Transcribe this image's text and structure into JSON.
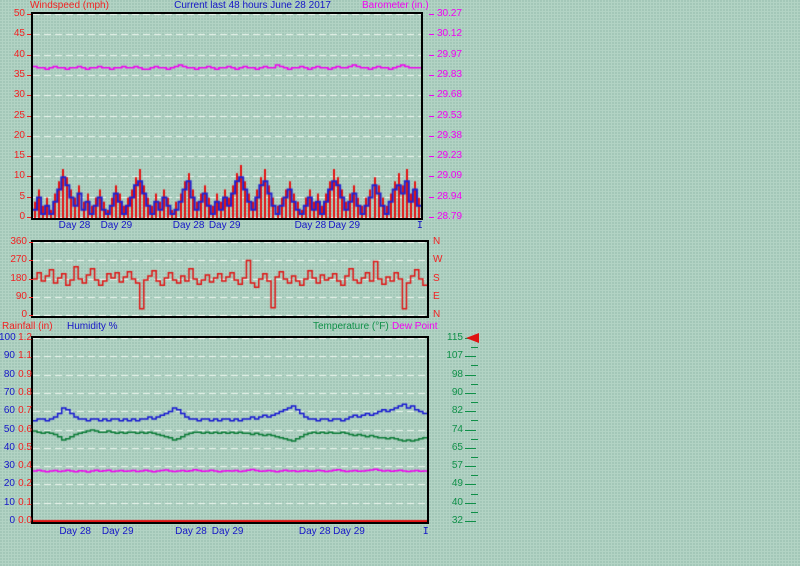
{
  "colors": {
    "red": "#f22222",
    "blue": "#1616c8",
    "magenta": "#f202f2",
    "green": "#0f9048",
    "grid": "#edf6ef",
    "border": "#000000",
    "background": "#b2d3c4",
    "background_dot": "#96bfae"
  },
  "chart_data": [
    {
      "name": "windspeed-barometer-chart",
      "type": "bar",
      "title": "Current last 48 hours June 28 2017",
      "left_axis": {
        "label": "Windspeed (mph)",
        "color": "#f22222",
        "ticks": [
          "50",
          "45",
          "40",
          "35",
          "30",
          "25",
          "20",
          "15",
          "10",
          "5",
          "0"
        ],
        "min": 0,
        "max": 50
      },
      "right_axis": {
        "label": "Barometer (in.)",
        "color": "#f202f2",
        "ticks": [
          "30.27",
          "30.12",
          "29.97",
          "29.83",
          "29.68",
          "29.53",
          "29.38",
          "29.23",
          "29.09",
          "28.94",
          "28.79"
        ],
        "min": 28.79,
        "max": 30.27
      },
      "x_axis": {
        "labels": [
          {
            "text": "Day 28",
            "pos": 0.107
          },
          {
            "text": "Day 29",
            "pos": 0.215
          },
          {
            "text": "Day 28",
            "pos": 0.401
          },
          {
            "text": "Day 29",
            "pos": 0.494
          },
          {
            "text": "Day 28",
            "pos": 0.715
          },
          {
            "text": "Day 29",
            "pos": 0.802
          },
          {
            "text": "I",
            "pos": 0.997
          }
        ]
      },
      "series": [
        {
          "name": "windspeed-high",
          "type": "bars",
          "axis": "left",
          "color": "#e41212",
          "values": [
            4,
            7,
            3,
            5,
            2,
            6,
            9,
            12,
            10,
            7,
            5,
            8,
            4,
            6,
            3,
            5,
            7,
            4,
            2,
            5,
            8,
            6,
            3,
            5,
            7,
            10,
            12,
            8,
            5,
            3,
            6,
            4,
            7,
            5,
            2,
            4,
            6,
            9,
            11,
            7,
            4,
            6,
            8,
            5,
            3,
            6,
            4,
            7,
            5,
            8,
            11,
            13,
            9,
            6,
            4,
            7,
            10,
            12,
            8,
            5,
            3,
            5,
            7,
            9,
            6,
            4,
            2,
            5,
            7,
            4,
            6,
            3,
            6,
            9,
            12,
            10,
            7,
            4,
            6,
            8,
            5,
            3,
            5,
            7,
            10,
            8,
            5,
            3,
            6,
            9,
            11,
            8,
            12,
            6,
            9,
            5
          ]
        },
        {
          "name": "windspeed-average",
          "type": "step",
          "axis": "left",
          "color": "#2222cc",
          "values": [
            2,
            5,
            1,
            3,
            1,
            4,
            7,
            10,
            8,
            5,
            3,
            6,
            2,
            4,
            1,
            3,
            5,
            2,
            1,
            3,
            6,
            4,
            1,
            3,
            5,
            8,
            9,
            6,
            3,
            1,
            4,
            2,
            5,
            3,
            1,
            2,
            4,
            7,
            9,
            5,
            2,
            4,
            6,
            3,
            1,
            4,
            2,
            5,
            3,
            6,
            9,
            10,
            7,
            4,
            2,
            5,
            8,
            9,
            6,
            3,
            1,
            3,
            5,
            7,
            4,
            2,
            1,
            3,
            5,
            2,
            4,
            1,
            4,
            7,
            9,
            8,
            5,
            2,
            4,
            6,
            3,
            1,
            3,
            5,
            8,
            6,
            3,
            1,
            4,
            7,
            8,
            6,
            9,
            4,
            7,
            3
          ]
        },
        {
          "name": "barometer",
          "type": "step",
          "axis": "right",
          "color": "#ee00ee",
          "values": [
            29.89,
            29.88,
            29.88,
            29.87,
            29.88,
            29.89,
            29.88,
            29.88,
            29.87,
            29.88,
            29.88,
            29.89,
            29.88,
            29.87,
            29.88,
            29.88,
            29.89,
            29.88,
            29.88,
            29.87,
            29.88,
            29.88,
            29.89,
            29.88,
            29.88,
            29.89,
            29.88,
            29.87,
            29.87,
            29.88,
            29.89,
            29.88,
            29.88,
            29.87,
            29.88,
            29.89,
            29.9,
            29.89,
            29.88,
            29.88,
            29.87,
            29.88,
            29.88,
            29.89,
            29.88,
            29.87,
            29.88,
            29.88,
            29.89,
            29.88,
            29.87,
            29.88,
            29.89,
            29.88,
            29.88,
            29.87,
            29.88,
            29.89,
            29.88,
            29.88,
            29.9,
            29.89,
            29.88,
            29.87,
            29.88,
            29.88,
            29.89,
            29.88,
            29.87,
            29.88,
            29.89,
            29.88,
            29.88,
            29.87,
            29.88,
            29.89,
            29.88,
            29.88,
            29.89,
            29.9,
            29.89,
            29.88,
            29.88,
            29.87,
            29.88,
            29.89,
            29.88,
            29.88,
            29.87,
            29.88,
            29.89,
            29.9,
            29.89,
            29.88,
            29.88,
            29.88
          ]
        }
      ]
    },
    {
      "name": "wind-direction-chart",
      "type": "line",
      "left_axis": {
        "color": "#f22222",
        "ticks": [
          "360",
          "270",
          "180",
          "90",
          "0"
        ],
        "min": 0,
        "max": 360
      },
      "right_axis": {
        "color": "#f22222",
        "ticks": [
          "N",
          "W",
          "S",
          "E",
          "N"
        ]
      },
      "series": [
        {
          "name": "wind-direction",
          "type": "step",
          "axis": "left",
          "color": "#e01212",
          "values": [
            180,
            210,
            170,
            195,
            225,
            160,
            185,
            205,
            150,
            175,
            240,
            180,
            160,
            200,
            230,
            175,
            150,
            170,
            205,
            185,
            210,
            165,
            190,
            215,
            180,
            160,
            35,
            175,
            195,
            220,
            170,
            150,
            185,
            210,
            175,
            160,
            195,
            170,
            230,
            180,
            155,
            175,
            200,
            165,
            185,
            205,
            170,
            190,
            210,
            175,
            155,
            185,
            270,
            160,
            140,
            180,
            205,
            170,
            40,
            190,
            215,
            180,
            160,
            195,
            170,
            150,
            180,
            220,
            185,
            160,
            200,
            175,
            185,
            205,
            170,
            150,
            195,
            230,
            175,
            160,
            185,
            210,
            170,
            265,
            180,
            155,
            190,
            170,
            210,
            180,
            35,
            160,
            195,
            225,
            180,
            150
          ]
        }
      ]
    },
    {
      "name": "humidity-temperature-chart",
      "type": "line",
      "rain_axis": {
        "label": "Rainfall (in)",
        "color": "#f22222",
        "ticks": [
          "1.2",
          "1.1",
          "0.9",
          "0.8",
          "0.7",
          "0.6",
          "0.5",
          "0.4",
          "0.2",
          "0.1",
          "0.0"
        ],
        "min": 0,
        "max": 1.2
      },
      "left_axis": {
        "label": "Humidity %",
        "color": "#1616c8",
        "ticks": [
          "100",
          "90",
          "80",
          "70",
          "60",
          "50",
          "40",
          "30",
          "20",
          "10",
          "0"
        ],
        "min": 0,
        "max": 100
      },
      "right_axis": {
        "label": "Temperature (°F)",
        "color": "#0f9048",
        "ticks": [
          "115",
          "107",
          "98",
          "90",
          "82",
          "74",
          "65",
          "57",
          "49",
          "40",
          "32"
        ],
        "min": 32,
        "max": 115,
        "marker": {
          "shape": "left-triangle",
          "color": "#e01212",
          "at_tick": "115"
        }
      },
      "dew_point_label": "Dew Point",
      "x_axis": {
        "labels": [
          {
            "text": "Day 28",
            "pos": 0.107
          },
          {
            "text": "Day 29",
            "pos": 0.215
          },
          {
            "text": "Day 28",
            "pos": 0.401
          },
          {
            "text": "Day 29",
            "pos": 0.494
          },
          {
            "text": "Day 28",
            "pos": 0.715
          },
          {
            "text": "Day 29",
            "pos": 0.802
          },
          {
            "text": "I",
            "pos": 0.997
          }
        ]
      },
      "series": [
        {
          "name": "humidity",
          "type": "step",
          "axis": "left",
          "color": "#1515d2",
          "values": [
            55,
            56,
            56,
            55,
            56,
            57,
            59,
            62,
            61,
            59,
            57,
            56,
            56,
            55,
            56,
            56,
            55,
            56,
            55,
            56,
            56,
            55,
            56,
            55,
            56,
            55,
            56,
            56,
            57,
            56,
            57,
            58,
            59,
            60,
            62,
            61,
            59,
            57,
            56,
            56,
            55,
            56,
            56,
            55,
            56,
            55,
            56,
            56,
            55,
            56,
            55,
            56,
            56,
            57,
            56,
            57,
            58,
            57,
            58,
            59,
            60,
            61,
            62,
            63,
            61,
            59,
            57,
            56,
            56,
            55,
            56,
            56,
            55,
            56,
            56,
            55,
            56,
            57,
            58,
            57,
            58,
            59,
            58,
            59,
            60,
            61,
            60,
            61,
            62,
            63,
            64,
            62,
            63,
            61,
            60,
            59
          ]
        },
        {
          "name": "temperature",
          "type": "step",
          "axis": "right",
          "color": "#0a7a35",
          "values": [
            73,
            72.5,
            72,
            72.5,
            72,
            71.5,
            70.5,
            69,
            69.5,
            70.5,
            71.5,
            72,
            72.5,
            73,
            73.5,
            73,
            72.5,
            72.5,
            73,
            72.5,
            72,
            72.5,
            72,
            72.5,
            72.5,
            72,
            72.5,
            72,
            72.5,
            72,
            71.5,
            71,
            70.5,
            70,
            69,
            69.5,
            70.5,
            71.5,
            72,
            72.5,
            72.5,
            72,
            72.5,
            72,
            72.5,
            72,
            72.5,
            72,
            72.5,
            72,
            72.5,
            72,
            72,
            71.5,
            72,
            71.5,
            71,
            71.5,
            71,
            70.5,
            70,
            69.5,
            69,
            68.5,
            69.5,
            70.5,
            71.5,
            72,
            72.5,
            72,
            72.5,
            72,
            72.5,
            72,
            72,
            72.5,
            72,
            71.5,
            71,
            71.5,
            71,
            70.5,
            71,
            70.5,
            70,
            70,
            69.5,
            70,
            69.5,
            69,
            68.5,
            69,
            68.5,
            69,
            69.5,
            70
          ]
        },
        {
          "name": "dew-point",
          "type": "step",
          "axis": "right",
          "color": "#ee00ee",
          "values": [
            55,
            55.3,
            55,
            54.7,
            55,
            55.2,
            54.8,
            55,
            55.4,
            55,
            54.7,
            55.1,
            55,
            54.6,
            55,
            55.3,
            54.9,
            55.1,
            55.4,
            54.8,
            55,
            55.2,
            54.9,
            55,
            55.2,
            54.8,
            55,
            55.3,
            55,
            54.7,
            55,
            55.2,
            55.5,
            55,
            54.8,
            55,
            55.2,
            54.9,
            55.1,
            55.6,
            55.2,
            54.9,
            55,
            55.3,
            55,
            54.7,
            55,
            55.1,
            55,
            55.2,
            54.8,
            55,
            55.3,
            55.7,
            55.2,
            54.9,
            55,
            55.2,
            55,
            54.7,
            55,
            55.3,
            55,
            55.1,
            54.8,
            55,
            55.2,
            54.9,
            55,
            55.4,
            55.1,
            54.8,
            55,
            55.3,
            55.6,
            55.1,
            54.8,
            55,
            55.2,
            54.9,
            55,
            55.2,
            55.5,
            55.8,
            55.3,
            55,
            55.2,
            54.9,
            55.1,
            55.4,
            55,
            54.8,
            55,
            55.2,
            54.9,
            55
          ]
        },
        {
          "name": "rainfall",
          "type": "step",
          "axis": "rain",
          "color": "#e01212",
          "constant": 0
        }
      ]
    }
  ]
}
